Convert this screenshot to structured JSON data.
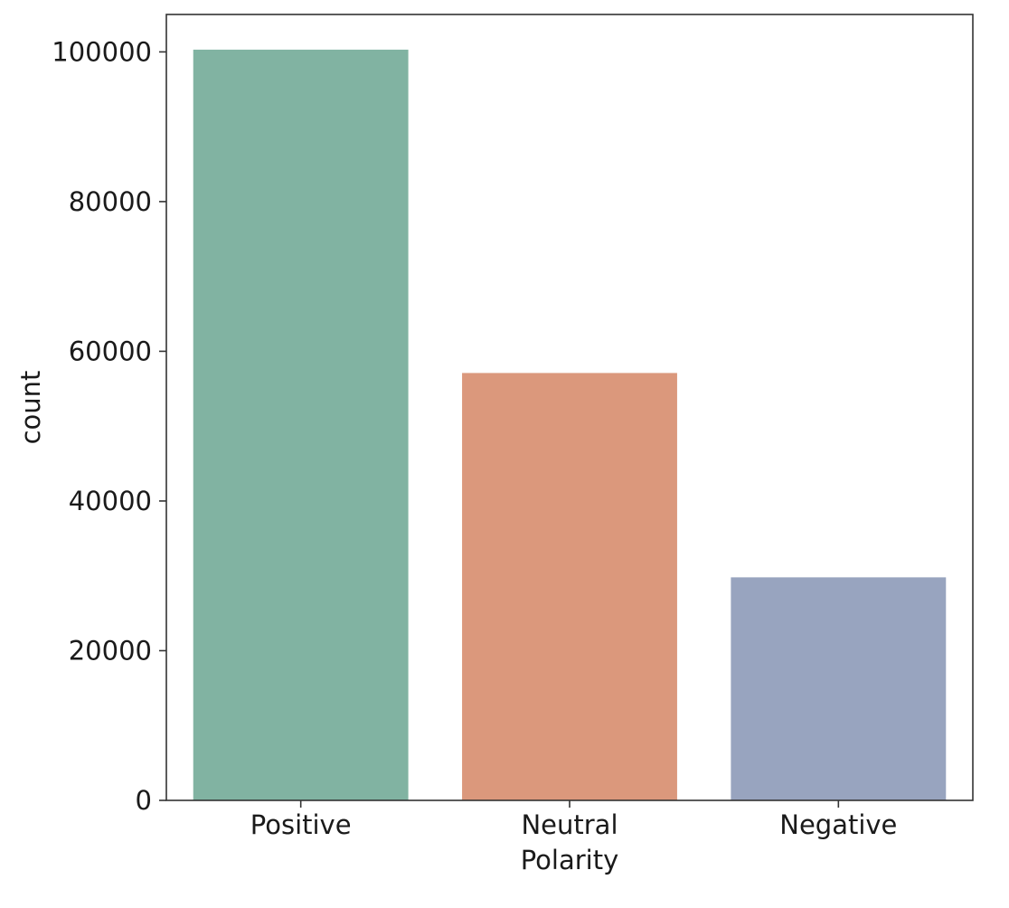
{
  "chart_data": {
    "type": "bar",
    "categories": [
      "Positive",
      "Neutral",
      "Negative"
    ],
    "values": [
      100300,
      57100,
      29800
    ],
    "colors": [
      "#81b3a2",
      "#db987c",
      "#98a4bf"
    ],
    "xlabel": "Polarity",
    "ylabel": "count",
    "ylim": [
      0,
      105000
    ],
    "yticks": [
      0,
      20000,
      40000,
      60000,
      80000,
      100000
    ],
    "grid": false,
    "legend": false
  }
}
